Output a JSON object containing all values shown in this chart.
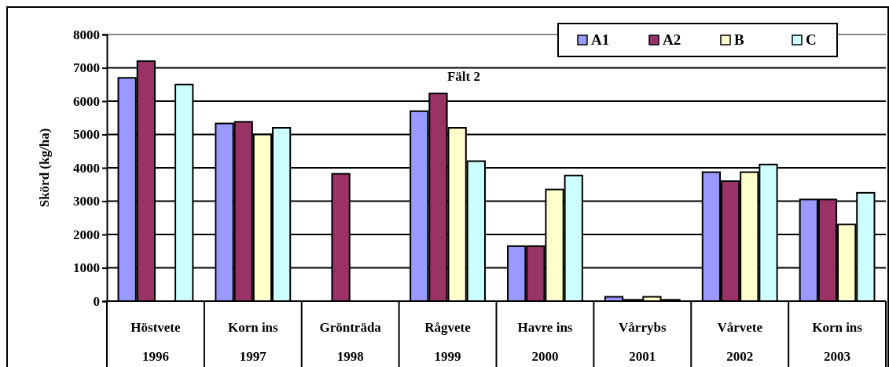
{
  "chart_data": {
    "type": "bar",
    "title": "Fält 2",
    "ylabel": "Skörd (kg/ha)",
    "categories": [
      "Höstvete\n1996",
      "Korn ins\n1997",
      "Grönträda\n1998",
      "Rågvete\n1999",
      "Havre ins\n2000",
      "Vårrybs\n2001",
      "Vårvete\n2002",
      "Korn ins\n2003"
    ],
    "series": [
      {
        "name": "A1",
        "color": "#9999ff",
        "values": [
          6700,
          5330,
          null,
          5700,
          1650,
          130,
          3870,
          3050
        ]
      },
      {
        "name": "A2",
        "color": "#993366",
        "values": [
          7200,
          5380,
          3820,
          6230,
          1650,
          40,
          3600,
          3050
        ]
      },
      {
        "name": "B",
        "color": "#ffffcc",
        "values": [
          null,
          5000,
          null,
          5200,
          3350,
          130,
          3870,
          2300
        ]
      },
      {
        "name": "C",
        "color": "#ccffff",
        "values": [
          6500,
          5200,
          null,
          4200,
          3770,
          40,
          4100,
          3250
        ]
      }
    ],
    "ylim": [
      0,
      8000
    ],
    "yticks": [
      0,
      1000,
      2000,
      3000,
      4000,
      5000,
      6000,
      7000,
      8000
    ],
    "grid": "y",
    "legend": "top right"
  }
}
